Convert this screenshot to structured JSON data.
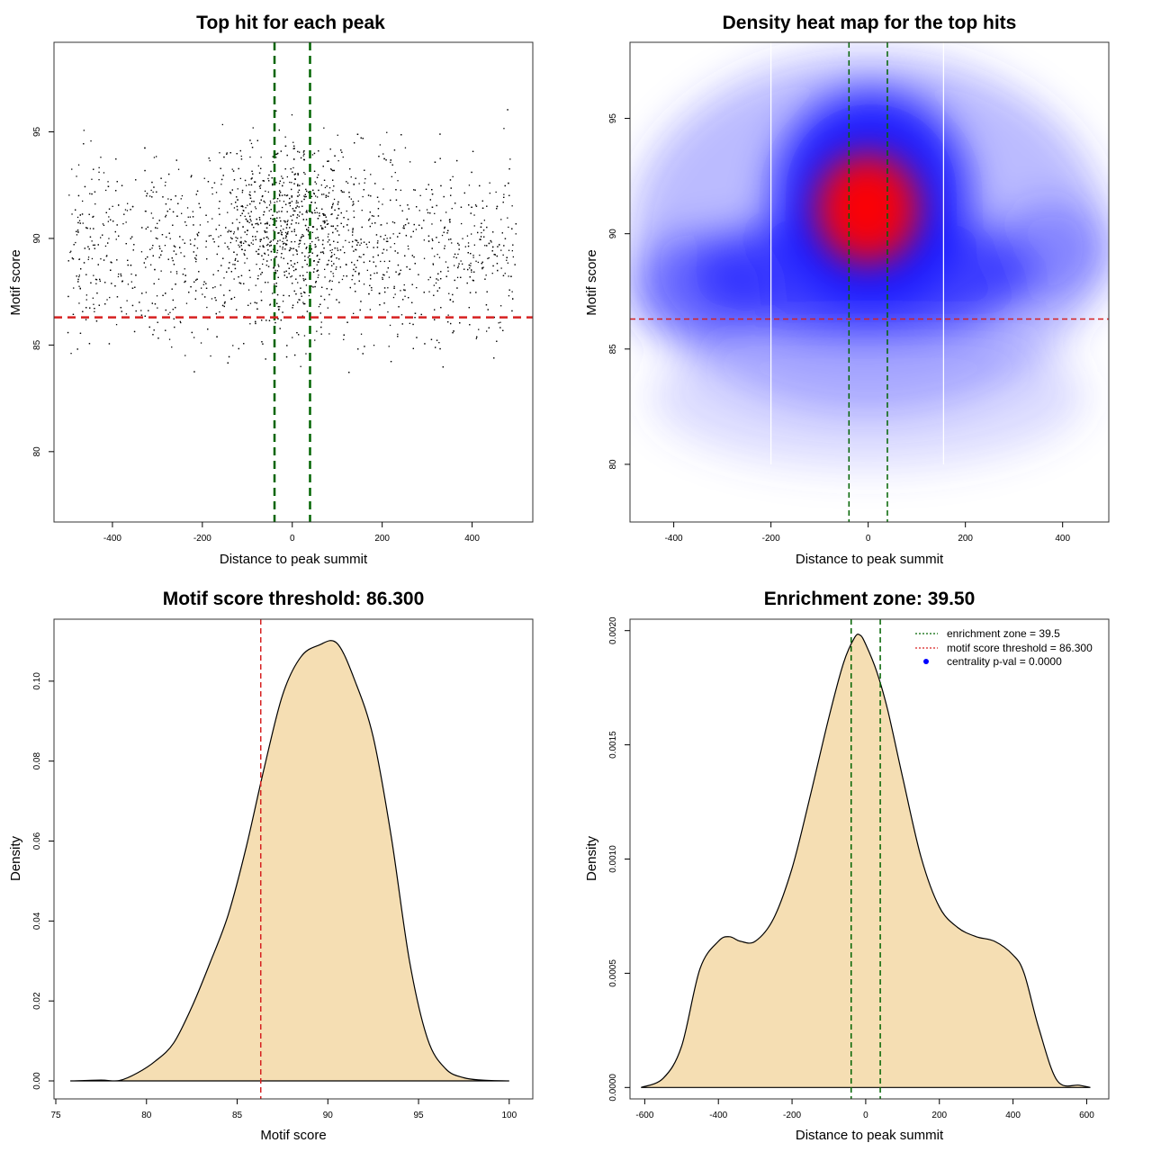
{
  "colors": {
    "green": "#006400",
    "red": "#d62020",
    "fill": "#f5deb3",
    "blue": "#0000ff",
    "heat_red": "#ff0000",
    "point": "#000000",
    "white_line": "#ffffff"
  },
  "chart_data": [
    {
      "id": "scatter",
      "type": "scatter",
      "title": "Top hit for each peak",
      "xlabel": "Distance to peak summit",
      "ylabel": "Motif score",
      "xlim": [
        -530,
        535
      ],
      "ylim": [
        76.7,
        99.2
      ],
      "xticks": [
        -400,
        -200,
        0,
        200,
        400
      ],
      "yticks": [
        80,
        85,
        90,
        95
      ],
      "vlines": [
        -39.5,
        39.5
      ],
      "hline": 86.3,
      "n_points": 3000,
      "point_distribution": {
        "x_range": [
          -500,
          500
        ],
        "score_mean": 89.5,
        "score_sd": 3.2,
        "center_mean": 91
      }
    },
    {
      "id": "heatmap",
      "type": "heatmap",
      "title": "Density heat map for the top hits",
      "xlabel": "Distance to peak summit",
      "ylabel": "Motif score",
      "xlim": [
        -490,
        495
      ],
      "ylim": [
        77.5,
        98.3
      ],
      "xticks": [
        -400,
        -200,
        0,
        200,
        400
      ],
      "yticks": [
        80,
        85,
        90,
        95
      ],
      "vlines": [
        -39.5,
        39.5
      ],
      "white_lines": [
        -200,
        155
      ],
      "hline": 86.3,
      "density_peak": {
        "x": 10,
        "y": 91
      }
    },
    {
      "id": "score_density",
      "type": "area",
      "title": "Motif score threshold: 86.300",
      "xlabel": "Motif score",
      "ylabel": "Density",
      "xlim": [
        74.9,
        101.3
      ],
      "ylim": [
        -0.0045,
        0.1155
      ],
      "xticks": [
        75,
        80,
        85,
        90,
        95,
        100
      ],
      "yticks": [
        0.0,
        0.02,
        0.04,
        0.06,
        0.08,
        0.1
      ],
      "ytick_labels": [
        "0.00",
        "0.02",
        "0.04",
        "0.06",
        "0.08",
        "0.10"
      ],
      "vline": 86.3,
      "x": [
        75.8,
        77.5,
        78.5,
        79.5,
        80.5,
        81.5,
        82.5,
        83.5,
        84.5,
        85.5,
        86.5,
        87.5,
        88.5,
        89.5,
        90.5,
        91.5,
        92.5,
        93.5,
        94.5,
        95.5,
        96.5,
        97.5,
        98.5,
        100.0
      ],
      "y": [
        0.0,
        0.0002,
        0.0001,
        0.002,
        0.005,
        0.0095,
        0.0185,
        0.0295,
        0.0415,
        0.0585,
        0.0785,
        0.0965,
        0.106,
        0.109,
        0.1095,
        0.1,
        0.086,
        0.061,
        0.03,
        0.0105,
        0.003,
        0.0008,
        0.0002,
        0.0
      ]
    },
    {
      "id": "distance_density",
      "type": "area",
      "title": "Enrichment zone: 39.50",
      "xlabel": "Distance to peak summit",
      "ylabel": "Density",
      "xlim": [
        -640,
        660
      ],
      "ylim": [
        -5e-05,
        0.00205
      ],
      "xticks": [
        -600,
        -400,
        -200,
        0,
        200,
        400,
        600
      ],
      "yticks": [
        0.0,
        0.0005,
        0.001,
        0.0015,
        0.002
      ],
      "ytick_labels": [
        "0.0000",
        "0.0005",
        "0.0010",
        "0.0015",
        "0.0020"
      ],
      "vlines": [
        -39.5,
        39.5
      ],
      "x": [
        -610,
        -550,
        -500,
        -450,
        -400,
        -370,
        -340,
        -300,
        -250,
        -200,
        -150,
        -100,
        -60,
        -30,
        -15,
        0,
        30,
        60,
        100,
        150,
        200,
        250,
        300,
        350,
        400,
        430,
        470,
        520,
        580,
        610
      ],
      "y": [
        0.0,
        4e-05,
        0.00018,
        0.00052,
        0.00064,
        0.00066,
        0.00064,
        0.00064,
        0.00074,
        0.00096,
        0.00128,
        0.00162,
        0.00186,
        0.00197,
        0.00198,
        0.00194,
        0.00182,
        0.00165,
        0.00136,
        0.00101,
        0.00079,
        0.0007,
        0.00066,
        0.00064,
        0.00058,
        0.0005,
        0.00026,
        3e-05,
        1e-05,
        0.0
      ],
      "legend": {
        "entries": [
          {
            "label": "enrichment zone = 39.5",
            "style": "green-dotted"
          },
          {
            "label": "motif score threshold = 86.300",
            "style": "red-dotted"
          },
          {
            "label": "centrality p-val = 0.0000",
            "style": "blue-point"
          }
        ],
        "position": "top-right"
      }
    }
  ]
}
